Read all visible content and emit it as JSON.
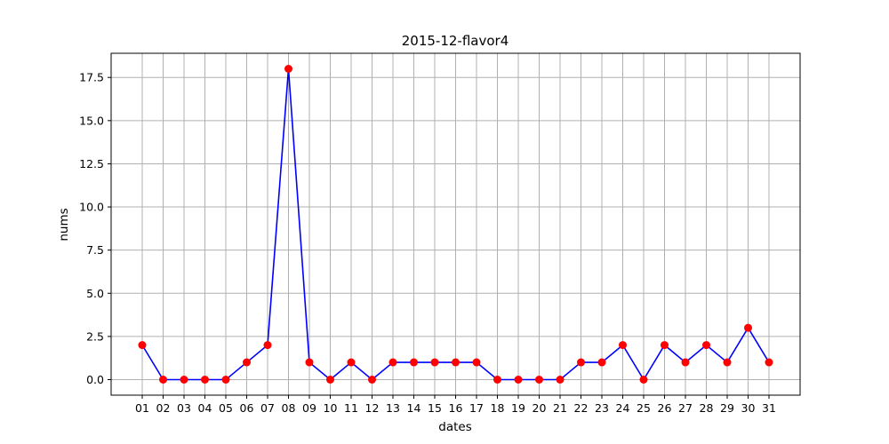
{
  "chart_data": {
    "type": "line",
    "title": "2015-12-flavor4",
    "xlabel": "dates",
    "ylabel": "nums",
    "categories": [
      "01",
      "02",
      "03",
      "04",
      "05",
      "06",
      "07",
      "08",
      "09",
      "10",
      "11",
      "12",
      "13",
      "14",
      "15",
      "16",
      "17",
      "18",
      "19",
      "20",
      "21",
      "22",
      "23",
      "24",
      "25",
      "26",
      "27",
      "28",
      "29",
      "30",
      "31"
    ],
    "series": [
      {
        "values": [
          2,
          0,
          0,
          0,
          0,
          1,
          2,
          18,
          1,
          0,
          1,
          0,
          1,
          1,
          1,
          1,
          1,
          0,
          0,
          0,
          0,
          1,
          1,
          2,
          0,
          2,
          1,
          2,
          1,
          3,
          1
        ],
        "line_color": "#0000ff",
        "marker_color": "#ff0000"
      }
    ],
    "ylim": [
      -0.9,
      18.9
    ],
    "yticks": [
      0.0,
      2.5,
      5.0,
      7.5,
      10.0,
      12.5,
      15.0,
      17.5
    ],
    "ytick_labels": [
      "0.0",
      "2.5",
      "5.0",
      "7.5",
      "10.0",
      "12.5",
      "15.0",
      "17.5"
    ],
    "grid": true,
    "legend": "none"
  }
}
